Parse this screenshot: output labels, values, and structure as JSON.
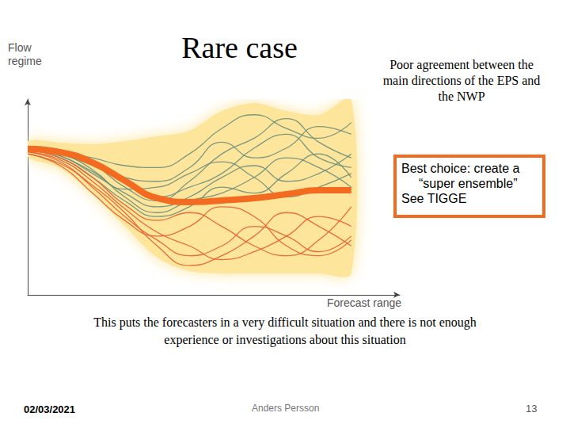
{
  "chart_data": {
    "type": "line",
    "title": "Rare case",
    "subtitle": "Poor agreement between the main directions of the EPS and the NWP",
    "annotation": [
      "Best choice: create a",
      "“super ensemble”",
      "See TIGGE"
    ],
    "x_label": "Forecast range",
    "y_label": "Flow regime",
    "tick_labels": false,
    "grid": false,
    "xlim": [
      0,
      115
    ],
    "ylim": [
      0,
      100
    ],
    "x": [
      0,
      10,
      20,
      30,
      40,
      50,
      60,
      70,
      80,
      90,
      100
    ],
    "envelope": {
      "color": "#fde59c",
      "upper": [
        78.5,
        77.7,
        76.9,
        78.5,
        81.0,
        83.8,
        93.9,
        98.0,
        93.9,
        91.9,
        100
      ],
      "lower": [
        70.4,
        64.8,
        51.4,
        35.2,
        19.0,
        12.1,
        10.9,
        10.9,
        10.9,
        10.9,
        10.9
      ]
    },
    "series": [
      {
        "color": "#6f8f7a",
        "line_style": "solid",
        "values": [
          75,
          73,
          70,
          66,
          65,
          72,
          85,
          92,
          85,
          80,
          88
        ]
      },
      {
        "color": "#6f8f7a",
        "line_style": "solid",
        "values": [
          76,
          74,
          68,
          60,
          58,
          65,
          78,
          70,
          75,
          86,
          82
        ]
      },
      {
        "color": "#6f8f7a",
        "line_style": "solid",
        "values": [
          75,
          72,
          66,
          58,
          50,
          55,
          62,
          75,
          82,
          70,
          65
        ]
      },
      {
        "color": "#6f8f7a",
        "line_style": "solid",
        "values": [
          74,
          71,
          62,
          52,
          45,
          50,
          60,
          66,
          58,
          62,
          72
        ]
      },
      {
        "color": "#6f8f7a",
        "line_style": "solid",
        "values": [
          75,
          73,
          67,
          55,
          48,
          58,
          72,
          80,
          90,
          78,
          70
        ]
      },
      {
        "color": "#6f8f7a",
        "line_style": "solid",
        "values": [
          74,
          70,
          60,
          48,
          40,
          45,
          55,
          52,
          62,
          72,
          60
        ]
      },
      {
        "color": "#6f8f7a",
        "line_style": "solid",
        "values": [
          75,
          72,
          64,
          50,
          42,
          48,
          52,
          60,
          70,
          65,
          55
        ]
      },
      {
        "color": "#6f8f7a",
        "line_style": "solid",
        "values": [
          75,
          71,
          63,
          54,
          55,
          62,
          68,
          60,
          50,
          55,
          62
        ]
      },
      {
        "color": "#e5602f",
        "line_style": "solid",
        "values": [
          73,
          68,
          55,
          40,
          28,
          20,
          25,
          35,
          30,
          22,
          30
        ]
      },
      {
        "color": "#e5602f",
        "line_style": "solid",
        "values": [
          72,
          66,
          52,
          38,
          30,
          35,
          45,
          40,
          25,
          20,
          28
        ]
      },
      {
        "color": "#e5602f",
        "line_style": "solid",
        "values": [
          73,
          69,
          58,
          44,
          32,
          25,
          18,
          22,
          30,
          40,
          35
        ]
      },
      {
        "color": "#e5602f",
        "line_style": "solid",
        "values": [
          74,
          70,
          60,
          46,
          38,
          42,
          35,
          25,
          20,
          28,
          45
        ]
      },
      {
        "color": "#e5602f",
        "line_style": "solid",
        "values": [
          72,
          67,
          56,
          42,
          25,
          15,
          20,
          30,
          42,
          35,
          25
        ]
      },
      {
        "color": "#f36b21",
        "line_style": "bold",
        "values": [
          74.5,
          72.9,
          67.6,
          58.3,
          49.4,
          47.4,
          48.2,
          49.4,
          51.4,
          53.4,
          53.4
        ]
      }
    ]
  },
  "slide": {
    "note": [
      "This puts the forecasters in a very difficult situation and there is not enough",
      "experience or investigations about this situation"
    ],
    "date": "02/03/2021",
    "author": "Anders Persson",
    "page": "13"
  }
}
